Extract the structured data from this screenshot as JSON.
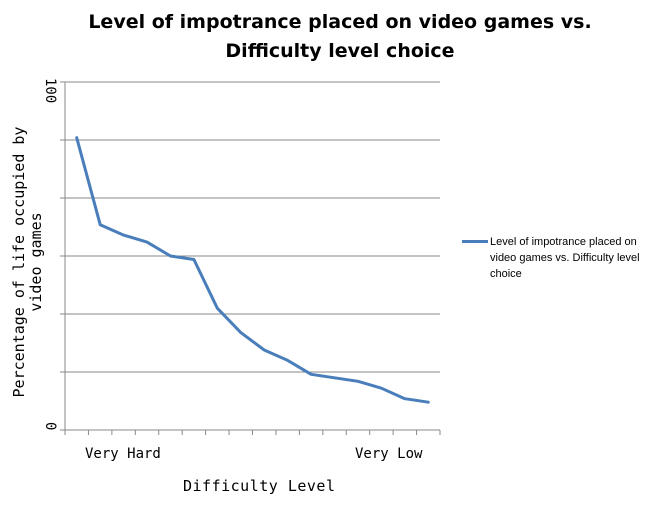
{
  "chart_data": {
    "type": "line",
    "title": "Level of impotrance placed on video games vs. Difficulty level choice",
    "xlabel": "Difficulty Level",
    "ylabel": "Percentage of life occupied by video games",
    "y_tick_labels": [
      "0",
      "100"
    ],
    "x_tick_labels": [
      "Very Hard",
      "Very Low"
    ],
    "ylim": [
      0,
      100
    ],
    "grid": true,
    "legend_position": "right",
    "series": [
      {
        "name": "Level of impotrance placed on video games vs. Difficulty level choice",
        "color": "#4a7ebb",
        "values": [
          84,
          59,
          56,
          54,
          50,
          49,
          35,
          28,
          23,
          20,
          16,
          15,
          14,
          12,
          9,
          8
        ]
      }
    ]
  }
}
